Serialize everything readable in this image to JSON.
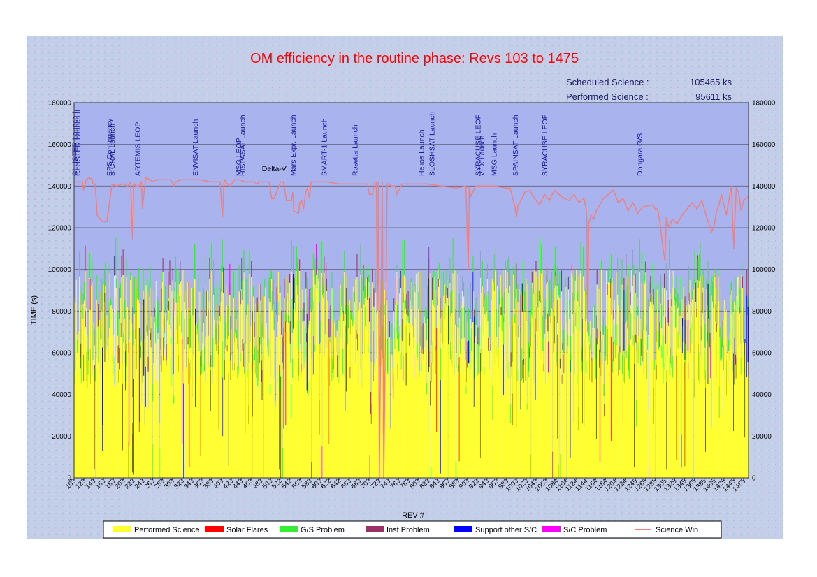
{
  "chart_data": {
    "type": "bar",
    "title": "OM efficiency in the routine phase: Revs  103 to  1475",
    "stats": [
      {
        "label": "Scheduled Science :",
        "value": "105465 ks"
      },
      {
        "label": "Performed Science :",
        "value": "95611 ks"
      }
    ],
    "xlabel": "REV #",
    "ylabel": "TIME (s)",
    "ylim": [
      0,
      180000
    ],
    "y_ticks": [
      0,
      20000,
      40000,
      60000,
      80000,
      100000,
      120000,
      140000,
      160000,
      180000
    ],
    "x_range": [
      103,
      1475
    ],
    "x_ticks": [
      103,
      123,
      143,
      163,
      183,
      203,
      223,
      243,
      263,
      283,
      303,
      323,
      343,
      363,
      383,
      403,
      423,
      443,
      463,
      483,
      503,
      522,
      542,
      563,
      583,
      603,
      622,
      642,
      663,
      683,
      703,
      723,
      743,
      763,
      783,
      803,
      823,
      843,
      863,
      883,
      903,
      923,
      943,
      963,
      983,
      1003,
      1023,
      1043,
      1063,
      1084,
      1104,
      1124,
      1144,
      1164,
      1184,
      1204,
      1224,
      1245,
      1265,
      1285,
      1305,
      1325,
      1345,
      1365,
      1385,
      1405,
      1425,
      1445,
      1465
    ],
    "legend_position": "bottom",
    "series": [
      {
        "name": "Performed Science",
        "color": "#ffff33"
      },
      {
        "name": "Solar Flares",
        "color": "#ff0000"
      },
      {
        "name": "G/S Problem",
        "color": "#33ee33"
      },
      {
        "name": "Inst Problem",
        "color": "#993366"
      },
      {
        "name": "Support other S/C",
        "color": "#0000ff"
      },
      {
        "name": "S/C Problem",
        "color": "#ff00ff"
      },
      {
        "name": "Science Win",
        "color": "#f08080"
      }
    ],
    "science_window": {
      "rev": [
        103,
        120,
        122,
        128,
        134,
        140,
        141,
        146,
        150,
        160,
        170,
        180,
        190,
        200,
        205,
        212,
        218,
        220,
        222,
        224,
        226,
        228,
        235,
        240,
        242,
        248,
        250,
        258,
        262,
        270,
        280,
        300,
        306,
        310,
        320,
        340,
        360,
        380,
        400,
        405,
        408,
        410,
        412,
        415,
        420,
        430,
        440,
        450,
        460,
        470,
        475,
        480,
        490,
        500,
        505,
        510,
        520,
        523,
        528,
        530,
        535,
        540,
        545,
        548,
        550,
        560,
        562,
        566,
        570,
        574,
        578,
        582,
        585,
        590,
        600,
        610,
        620,
        640,
        660,
        680,
        700,
        704,
        710,
        715,
        718,
        720,
        722,
        724,
        730,
        733,
        740,
        744,
        748,
        752,
        756,
        760,
        770,
        780,
        790,
        800,
        820,
        850,
        880,
        900,
        905,
        907,
        910,
        920,
        940,
        960,
        980,
        990,
        1000,
        1003,
        1006,
        1010,
        1020,
        1030,
        1040,
        1050,
        1060,
        1070,
        1080,
        1090,
        1100,
        1110,
        1120,
        1130,
        1140,
        1144,
        1146,
        1148,
        1150,
        1155,
        1160,
        1165,
        1170,
        1180,
        1190,
        1200,
        1210,
        1220,
        1230,
        1240,
        1250,
        1260,
        1280,
        1285,
        1290,
        1295,
        1300,
        1305,
        1308,
        1312,
        1320,
        1330,
        1340,
        1350,
        1360,
        1370,
        1380,
        1390,
        1400,
        1405,
        1410,
        1415,
        1420,
        1430,
        1440,
        1445,
        1450,
        1455,
        1460,
        1465,
        1470,
        1475
      ],
      "value": [
        142000,
        142000,
        138000,
        143000,
        144000,
        143000,
        141000,
        141000,
        126000,
        123000,
        123000,
        141000,
        140000,
        141000,
        141000,
        140000,
        142000,
        126000,
        114000,
        140000,
        141000,
        140000,
        140000,
        142000,
        129000,
        143000,
        144000,
        143000,
        142000,
        143000,
        143000,
        143000,
        140000,
        142000,
        143000,
        143000,
        143000,
        142000,
        142000,
        125000,
        142000,
        143000,
        142000,
        141000,
        140000,
        143000,
        143000,
        142000,
        142000,
        142000,
        141000,
        142000,
        142000,
        142000,
        134000,
        134000,
        140000,
        142000,
        142000,
        141000,
        133000,
        133000,
        133000,
        137000,
        128000,
        127000,
        132000,
        133000,
        129000,
        137000,
        139000,
        134000,
        142000,
        142000,
        142000,
        142000,
        142000,
        141000,
        141000,
        141000,
        141000,
        136000,
        136000,
        142000,
        142000,
        80000,
        142000,
        0,
        142000,
        0,
        141000,
        141000,
        140000,
        140000,
        140000,
        136000,
        141000,
        141000,
        141000,
        141000,
        141000,
        140000,
        139000,
        140000,
        100000,
        140000,
        135000,
        140000,
        140000,
        140000,
        139000,
        139000,
        130000,
        125000,
        131000,
        132000,
        137000,
        138000,
        134000,
        131000,
        136000,
        133000,
        138000,
        136000,
        134000,
        133000,
        136000,
        132000,
        134000,
        130000,
        125000,
        70000,
        122000,
        126000,
        124000,
        128000,
        130000,
        134000,
        136000,
        138000,
        132000,
        134000,
        128000,
        132000,
        127000,
        130000,
        131000,
        129000,
        129000,
        122000,
        112000,
        104000,
        125000,
        120000,
        124000,
        122000,
        126000,
        129000,
        132000,
        129000,
        133000,
        125000,
        118000,
        121000,
        128000,
        131000,
        136000,
        126000,
        140000,
        110000,
        139000,
        137000,
        128000,
        133000,
        134000,
        135000
      ]
    },
    "launch_annotations": [
      {
        "rev": 104,
        "label": "CLUSTER Launch I"
      },
      {
        "rev": 110,
        "label": "CLUSTER Launch II"
      },
      {
        "rev": 174,
        "label": "EPS Contingency"
      },
      {
        "rev": 180,
        "label": "SICRAL Launch"
      },
      {
        "rev": 232,
        "label": "ARTEMIS LEOP"
      },
      {
        "rev": 349,
        "label": "ENVISAT Launch"
      },
      {
        "rev": 437,
        "label": "MSG LEOP"
      },
      {
        "rev": 445,
        "label": "HISPASAT Launch"
      },
      {
        "rev": 488,
        "label": "Delta-V"
      },
      {
        "rev": 548,
        "label": "Mars Expr. Launch"
      },
      {
        "rev": 611,
        "label": "SMART-1 Launch"
      },
      {
        "rev": 674,
        "label": "Rosetta Launch"
      },
      {
        "rev": 809,
        "label": "Helios Launch"
      },
      {
        "rev": 830,
        "label": "SLOSHSAT Launch"
      },
      {
        "rev": 924,
        "label": "SYRACUSE LEOF"
      },
      {
        "rev": 932,
        "label": "VEX Launch"
      },
      {
        "rev": 957,
        "label": "MSG Launch"
      },
      {
        "rev": 1000,
        "label": "SPAINSAT Launch"
      },
      {
        "rev": 1060,
        "label": "SYRACUSE LEOF"
      },
      {
        "rev": 1253,
        "label": "Dongara G/S"
      }
    ]
  }
}
